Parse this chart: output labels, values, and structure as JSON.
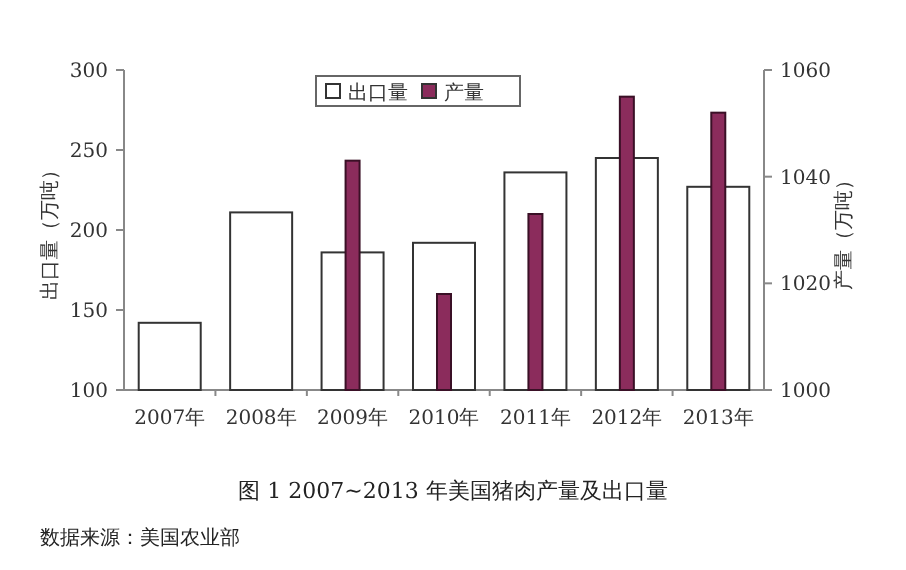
{
  "chart_data": {
    "type": "bar",
    "title": "图 1  2007~2013 年美国猪肉产量及出口量",
    "annotations": [
      "数据来源：美国农业部"
    ],
    "categories": [
      "2007年",
      "2008年",
      "2009年",
      "2010年",
      "2011年",
      "2012年",
      "2013年"
    ],
    "series": [
      {
        "name": "出口量",
        "color": "#ffffff",
        "values": [
          142,
          211,
          186,
          192,
          236,
          245,
          227
        ]
      },
      {
        "name": "产量",
        "color": "#8b2c5c",
        "axis": "y2",
        "values": [
          null,
          null,
          1043,
          1018,
          1033,
          1055,
          1052
        ]
      }
    ],
    "ylabel": "出口量（万吨）",
    "y2label": "产量（万吨）",
    "ylim": [
      100,
      300
    ],
    "yticks": [
      100,
      150,
      200,
      250,
      300
    ],
    "y2lim": [
      1000,
      1060
    ],
    "y2ticks": [
      1000,
      1020,
      1040,
      1060
    ],
    "grid": false,
    "legend": "top"
  }
}
